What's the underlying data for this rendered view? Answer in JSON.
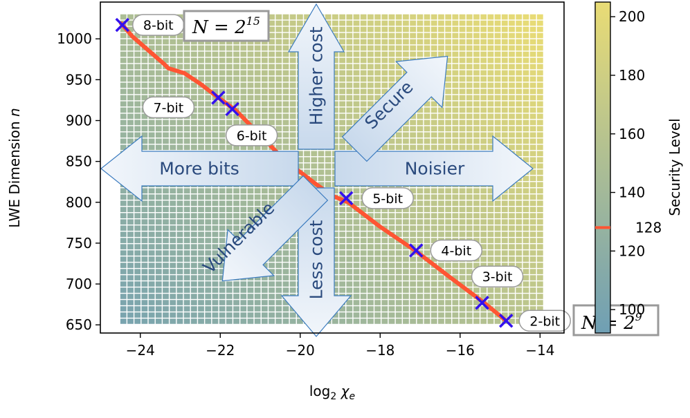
{
  "chart_data": {
    "type": "heatmap",
    "xlabel_base": "log",
    "xlabel_sub": "2",
    "xlabel_var": "χ",
    "xlabel_var_sub": "e",
    "ylabel": "LWE Dimension ",
    "ylabel_var": "n",
    "xlim": [
      -25,
      -13.4
    ],
    "ylim": [
      640,
      1045
    ],
    "xticks": [
      -24,
      -22,
      -20,
      -18,
      -16,
      -14
    ],
    "xtick_labels": [
      "−24",
      "−22",
      "−20",
      "−18",
      "−16",
      "−14"
    ],
    "yticks": [
      650,
      700,
      750,
      800,
      850,
      900,
      950,
      1000
    ],
    "yticks_labels": [
      "650",
      "700",
      "750",
      "800",
      "850",
      "900",
      "950",
      "1000"
    ],
    "heatmap_extent": {
      "x": [
        -24.5,
        -13.9
      ],
      "y": [
        650,
        1030
      ]
    },
    "colorbar": {
      "label": "Security Level",
      "range": [
        92,
        205
      ],
      "ticks": [
        100,
        120,
        140,
        160,
        180,
        200
      ],
      "tick_labels": [
        "100",
        "120",
        "140",
        "160",
        "180",
        "200"
      ],
      "marker_value": 128,
      "marker_label": "128",
      "marker_color": "#ff4d4d",
      "color_low": "#6f9fb4",
      "color_high": "#e9dc75"
    },
    "security_boundary": {
      "color": "#ff5533",
      "x": [
        -24.5,
        -24.2,
        -23.8,
        -23.4,
        -23.3,
        -22.9,
        -22.5,
        -22.1,
        -21.6,
        -21.2,
        -20.8,
        -20.4,
        -20.0,
        -19.6,
        -19.2,
        -18.8,
        -18.0,
        -17.1,
        -16.3,
        -15.4,
        -14.85
      ],
      "y": [
        1020,
        1003,
        986,
        969,
        964,
        958,
        945,
        930,
        912,
        892,
        872,
        852,
        837,
        822,
        808,
        800,
        770,
        740,
        710,
        677,
        655
      ]
    },
    "points": [
      {
        "label": "8-bit",
        "x": -24.45,
        "y": 1017
      },
      {
        "label": "7-bit",
        "x": -22.05,
        "y": 928
      },
      {
        "label": "6-bit",
        "x": -21.7,
        "y": 914
      },
      {
        "label": "5-bit",
        "x": -18.85,
        "y": 805
      },
      {
        "label": "4-bit",
        "x": -17.1,
        "y": 741
      },
      {
        "label": "3-bit",
        "x": -15.45,
        "y": 677
      },
      {
        "label": "2-bit",
        "x": -14.85,
        "y": 655
      }
    ],
    "marker_color": "#3311ee",
    "annotations": {
      "top_box_prefix": "N = 2",
      "top_box_exp": "15",
      "bottom_box_prefix": "N = 2",
      "bottom_box_exp": "9"
    },
    "arrows": {
      "up": "Higher cost",
      "down": "Less cost",
      "left": "More bits",
      "right": "Noisier",
      "up_right": "Secure",
      "down_left": "Vulnerable"
    }
  }
}
